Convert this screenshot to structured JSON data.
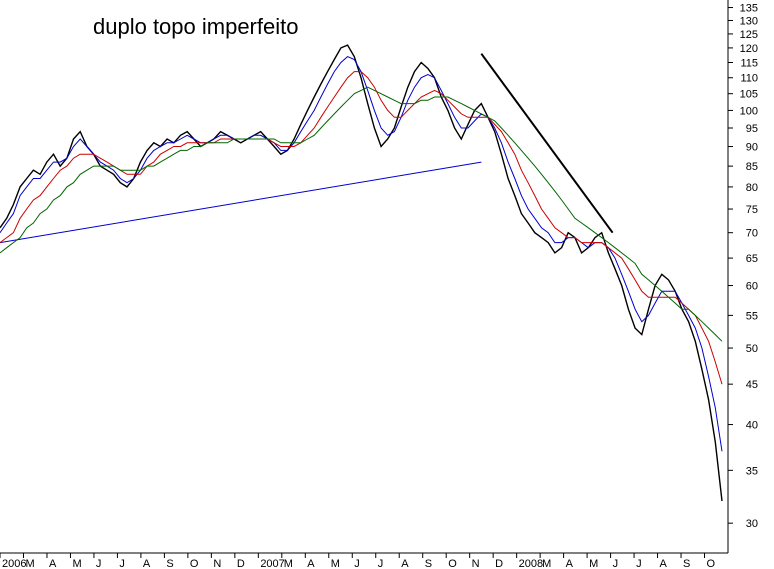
{
  "chart_data": {
    "type": "line",
    "title": "duplo topo imperfeito",
    "y_scale": "log",
    "ylim": [
      27.5,
      138
    ],
    "y_ticks": [
      30,
      35,
      40,
      45,
      50,
      55,
      60,
      65,
      70,
      75,
      80,
      85,
      90,
      95,
      100,
      105,
      110,
      115,
      120,
      125,
      130,
      135
    ],
    "x_tick_labels": [
      "2006",
      "M",
      "A",
      "M",
      "J",
      "J",
      "A",
      "S",
      "O",
      "N",
      "D",
      "2007",
      "M",
      "A",
      "M",
      "J",
      "J",
      "A",
      "S",
      "O",
      "N",
      "D",
      "2008",
      "M",
      "A",
      "M",
      "J",
      "J",
      "A",
      "S",
      "O"
    ],
    "series": [
      {
        "role": "price",
        "color": "#000000",
        "values": [
          71,
          73,
          76,
          80,
          82,
          84,
          83,
          86,
          88,
          85,
          87,
          92,
          94,
          90,
          88,
          85,
          84,
          83,
          81,
          80,
          82,
          86,
          89,
          91,
          90,
          92,
          91,
          93,
          94,
          92,
          90,
          91,
          92,
          94,
          93,
          92,
          91,
          92,
          93,
          94,
          92,
          90,
          88,
          89,
          92,
          96,
          100,
          104,
          108,
          112,
          116,
          120,
          121,
          117,
          110,
          102,
          95,
          90,
          92,
          95,
          101,
          107,
          112,
          115,
          113,
          110,
          104,
          100,
          95,
          92,
          96,
          100,
          102,
          98,
          94,
          88,
          82,
          78,
          74,
          72,
          70,
          69,
          68,
          66,
          67,
          70,
          69,
          66,
          67,
          69,
          70,
          66,
          63,
          60,
          56,
          53,
          52,
          56,
          60,
          62,
          61,
          59,
          56,
          54,
          51,
          47,
          43,
          38,
          32
        ]
      },
      {
        "role": "moving-average",
        "color": "#0000cc",
        "values": [
          70,
          72,
          74,
          78,
          80,
          82,
          82,
          84,
          86,
          86,
          87,
          90,
          92,
          90,
          88,
          86,
          85,
          84,
          82,
          81,
          82,
          84,
          87,
          89,
          90,
          91,
          91,
          92,
          93,
          92,
          91,
          91,
          92,
          93,
          93,
          92,
          92,
          92,
          93,
          93,
          92,
          91,
          89,
          89,
          91,
          94,
          97,
          100,
          104,
          108,
          112,
          115,
          117,
          116,
          112,
          106,
          100,
          95,
          93,
          94,
          98,
          103,
          107,
          110,
          111,
          110,
          106,
          102,
          98,
          95,
          95,
          97,
          99,
          98,
          95,
          91,
          86,
          82,
          78,
          75,
          73,
          71,
          70,
          68,
          68,
          69,
          69,
          68,
          67,
          68,
          68,
          67,
          65,
          62,
          59,
          56,
          54,
          55,
          57,
          59,
          59,
          59,
          57,
          55,
          53,
          50,
          46,
          42,
          37
        ]
      },
      {
        "role": "moving-average",
        "color": "#cc0000",
        "values": [
          68,
          69,
          70,
          73,
          75,
          77,
          78,
          80,
          82,
          84,
          85,
          87,
          88,
          88,
          88,
          87,
          86,
          85,
          84,
          83,
          83,
          83,
          85,
          86,
          88,
          89,
          90,
          90,
          91,
          91,
          91,
          91,
          91,
          92,
          92,
          92,
          92,
          92,
          92,
          92,
          92,
          91,
          90,
          90,
          90,
          91,
          93,
          95,
          98,
          101,
          104,
          107,
          110,
          112,
          112,
          110,
          107,
          103,
          100,
          98,
          98,
          100,
          102,
          104,
          105,
          106,
          105,
          103,
          101,
          99,
          98,
          98,
          98,
          98,
          96,
          94,
          91,
          88,
          84,
          81,
          78,
          75,
          73,
          71,
          70,
          69,
          69,
          68,
          68,
          68,
          68,
          67,
          66,
          65,
          63,
          61,
          59,
          58,
          58,
          58,
          58,
          58,
          57,
          56,
          55,
          53,
          51,
          48,
          45
        ]
      },
      {
        "role": "moving-average",
        "color": "#006600",
        "values": [
          66,
          67,
          68,
          69,
          71,
          72,
          74,
          75,
          77,
          78,
          80,
          81,
          83,
          84,
          85,
          85,
          85,
          85,
          84,
          84,
          84,
          84,
          85,
          85,
          86,
          87,
          88,
          89,
          89,
          90,
          90,
          91,
          91,
          91,
          91,
          92,
          92,
          92,
          92,
          92,
          92,
          92,
          91,
          91,
          91,
          91,
          92,
          93,
          95,
          97,
          99,
          101,
          103,
          105,
          106,
          107,
          106,
          105,
          104,
          103,
          102,
          102,
          102,
          103,
          103,
          104,
          104,
          104,
          103,
          102,
          101,
          100,
          99,
          98,
          97,
          95,
          93,
          91,
          89,
          87,
          85,
          83,
          81,
          79,
          77,
          75,
          73,
          72,
          71,
          70,
          69,
          68,
          67,
          66,
          65,
          64,
          62,
          61,
          60,
          59,
          58,
          57,
          56,
          56,
          55,
          54,
          53,
          52,
          51
        ]
      }
    ],
    "trendlines": [
      {
        "color": "#0000cc",
        "from": {
          "x": "2006-01",
          "y": 68
        },
        "to": {
          "x": "2007-11",
          "y": 86
        }
      },
      {
        "color": "#000000",
        "from": {
          "x": "2007-11",
          "y": 118
        },
        "to": {
          "x": "2008-05",
          "y": 70
        }
      }
    ],
    "grid": false
  }
}
